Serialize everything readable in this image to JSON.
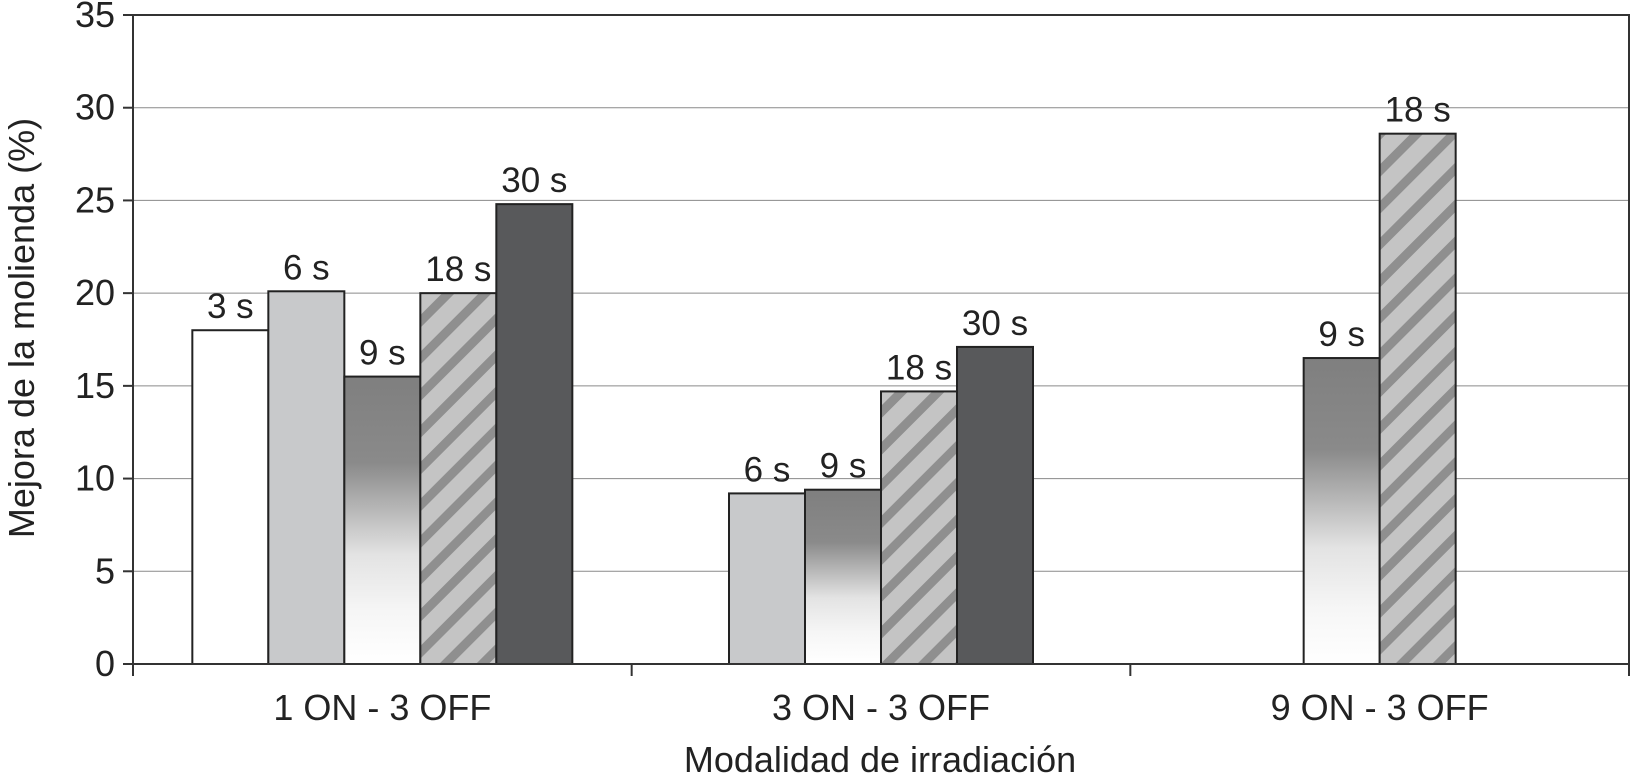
{
  "chart_data": {
    "type": "bar",
    "title": "",
    "xlabel": "Modalidad de irradiación",
    "ylabel": "Mejora de la molienda (%)",
    "ylim": [
      0,
      35
    ],
    "yticks": [
      0,
      5,
      10,
      15,
      20,
      25,
      30,
      35
    ],
    "grid": true,
    "legend": "none",
    "categories": [
      "1 ON - 3 OFF",
      "3 ON - 3 OFF",
      "9 ON - 3 OFF"
    ],
    "series": [
      {
        "label": "3 s",
        "color": "#ffffff",
        "values": [
          18.0,
          null,
          null
        ]
      },
      {
        "label": "6 s",
        "color": "#c8c9cb",
        "values": [
          20.1,
          9.2,
          null
        ]
      },
      {
        "label": "9 s",
        "color": "#808080",
        "values": [
          15.5,
          9.4,
          16.5
        ]
      },
      {
        "label": "18 s",
        "color": "#bdbdbd",
        "values": [
          20.0,
          14.7,
          28.6
        ]
      },
      {
        "label": "30 s",
        "color": "#58595b",
        "values": [
          24.8,
          17.1,
          null
        ]
      }
    ]
  }
}
